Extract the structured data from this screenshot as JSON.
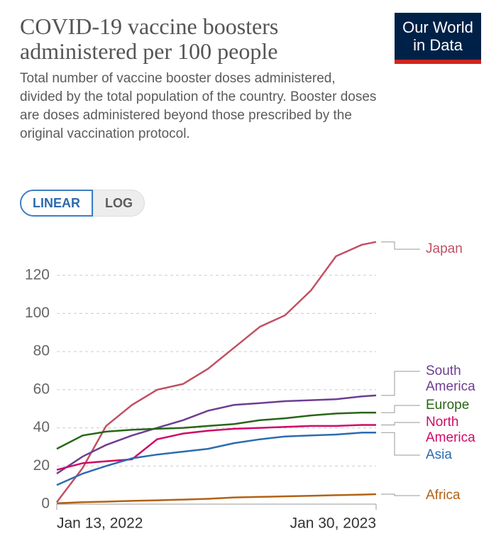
{
  "chart_data": {
    "type": "line",
    "title": "COVID-19 vaccine boosters administered per 100 people",
    "subtitle": "Total number of vaccine booster doses administered, divided by the total population of the country. Booster doses are doses administered beyond those prescribed by the original vaccination protocol.",
    "logo": "Our World in Data",
    "scale_buttons": [
      "LINEAR",
      "LOG"
    ],
    "selected_scale": "LINEAR",
    "log_scale": false,
    "grid": true,
    "x": [
      "2022-01-13",
      "2022-02-13",
      "2022-03-13",
      "2022-04-13",
      "2022-05-13",
      "2022-06-13",
      "2022-07-13",
      "2022-08-13",
      "2022-09-13",
      "2022-10-13",
      "2022-11-13",
      "2022-12-13",
      "2023-01-13",
      "2023-01-30"
    ],
    "xlim": [
      "2022-01-13",
      "2023-01-30"
    ],
    "xticks": [
      {
        "value": "2022-01-13",
        "label": "Jan 13, 2022"
      },
      {
        "value": "2023-01-30",
        "label": "Jan 30, 2023"
      }
    ],
    "ylim": [
      0,
      140
    ],
    "yticks": [
      0,
      20,
      40,
      60,
      80,
      100,
      120
    ],
    "series": [
      {
        "name": "Japan",
        "color": "#c15065",
        "values": [
          1,
          19,
          41,
          52,
          60,
          63,
          71,
          82,
          93,
          99,
          112,
          130,
          136,
          137.5
        ]
      },
      {
        "name": "South America",
        "color": "#6d3e91",
        "values": [
          16,
          25,
          31,
          36,
          40,
          44,
          49,
          52,
          53,
          54,
          54.5,
          55,
          56.5,
          57
        ]
      },
      {
        "name": "Europe",
        "color": "#286618",
        "values": [
          29,
          36,
          38,
          39,
          39.5,
          40,
          41,
          42,
          44,
          45,
          46.5,
          47.5,
          48,
          48
        ]
      },
      {
        "name": "North America",
        "color": "#cf0a66",
        "values": [
          18,
          21.5,
          22.5,
          23.5,
          34,
          37,
          38.5,
          39.5,
          40,
          40.5,
          41,
          41,
          41.5,
          41.5
        ]
      },
      {
        "name": "Asia",
        "color": "#2c6cb0",
        "values": [
          10,
          16,
          20,
          24,
          26,
          27.5,
          29,
          32,
          34,
          35.5,
          36,
          36.5,
          37.5,
          37.5
        ]
      },
      {
        "name": "Africa",
        "color": "#b16214",
        "values": [
          0.5,
          1,
          1.3,
          1.7,
          2,
          2.4,
          2.8,
          3.5,
          3.8,
          4.1,
          4.4,
          4.7,
          5,
          5.2
        ]
      }
    ]
  }
}
